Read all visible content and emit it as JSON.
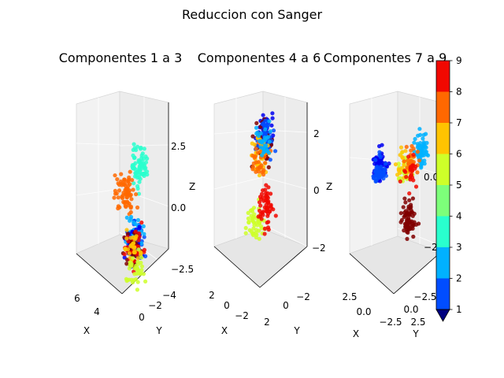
{
  "chart_data": {
    "type": "scatter",
    "title": "Reduccion con Sanger",
    "colorbar": {
      "colormap": "jet",
      "min": 1,
      "max": 9,
      "ticks": [
        "1",
        "2",
        "3",
        "4",
        "5",
        "6",
        "7",
        "8",
        "9"
      ],
      "colors": [
        "#000080",
        "#0000f1",
        "#004dff",
        "#00b1ff",
        "#29ffce",
        "#7dff7a",
        "#ceff29",
        "#ffc400",
        "#ff6800",
        "#f10800",
        "#800000"
      ],
      "extend": "min"
    },
    "subplots": [
      {
        "title": "Componentes 1 a 3",
        "type": "scatter3d",
        "xlabel": "X",
        "ylabel": "Y",
        "zlabel": "Z",
        "xticks": [
          "6",
          "4"
        ],
        "yticks": [
          "0",
          "−2",
          "−4"
        ],
        "zticks": [
          "2.5",
          "0.0",
          "−2.5"
        ],
        "clusters": [
          {
            "class": 4,
            "x": 4.6,
            "y": 0.5,
            "z": 2.3,
            "n": 70
          },
          {
            "class": 7,
            "x": 3.8,
            "y": -2.6,
            "z": 0.1,
            "n": 70
          },
          {
            "class": 2,
            "x": 5.0,
            "y": 0.4,
            "z": -0.7,
            "n": 60
          },
          {
            "class": 3,
            "x": 5.0,
            "y": 0.4,
            "z": -0.3,
            "n": 40
          },
          {
            "class": 1,
            "x": 5.0,
            "y": 0.2,
            "z": -0.8,
            "n": 40
          },
          {
            "class": 9,
            "x": 5.0,
            "y": 0.3,
            "z": -1.0,
            "n": 35
          },
          {
            "class": 8,
            "x": 5.0,
            "y": 0.2,
            "z": -0.9,
            "n": 30
          },
          {
            "class": 6,
            "x": 5.0,
            "y": 0.1,
            "z": -1.0,
            "n": 30
          },
          {
            "class": 5,
            "x": 5.2,
            "y": 0.8,
            "z": -1.7,
            "n": 40
          }
        ]
      },
      {
        "title": "Componentes 4 a 6",
        "type": "scatter3d",
        "xlabel": "X",
        "ylabel": "Y",
        "zlabel": "Z",
        "xticks": [
          "2",
          "0",
          "−2"
        ],
        "yticks": [
          "2",
          "0",
          "−2"
        ],
        "zticks": [
          "2",
          "0",
          "−2"
        ],
        "clusters": [
          {
            "class": 1,
            "x": -1.0,
            "y": -0.5,
            "z": 1.8,
            "n": 45
          },
          {
            "class": 9,
            "x": -1.3,
            "y": -0.8,
            "z": 1.2,
            "n": 45
          },
          {
            "class": 2,
            "x": -2.0,
            "y": -1.5,
            "z": 1.0,
            "n": 50
          },
          {
            "class": 6,
            "x": 0.4,
            "y": 0.4,
            "z": 1.4,
            "n": 40
          },
          {
            "class": 7,
            "x": 0.2,
            "y": 0.0,
            "z": 1.0,
            "n": 30
          },
          {
            "class": 5,
            "x": 1.4,
            "y": 0.8,
            "z": -0.7,
            "n": 50
          },
          {
            "class": 8,
            "x": -0.9,
            "y": -0.2,
            "z": -0.9,
            "n": 55
          },
          {
            "class": 3,
            "x": -1.2,
            "y": -0.8,
            "z": 1.2,
            "n": 30
          }
        ]
      },
      {
        "title": "Componentes 7 a 9",
        "type": "scatter3d",
        "xlabel": "X",
        "ylabel": "Y",
        "zlabel": "",
        "xticks": [
          "2.5",
          "0.0",
          "−2.5"
        ],
        "yticks": [
          "−2.5",
          "0.0",
          "2.5"
        ],
        "zticks": [
          "0.0",
          "−2.5"
        ],
        "clusters": [
          {
            "class": 1,
            "x": 1.0,
            "y": -1.0,
            "z": 0.8,
            "n": 60
          },
          {
            "class": 2,
            "x": 1.0,
            "y": -1.0,
            "z": 0.7,
            "n": 40
          },
          {
            "class": 3,
            "x": -1.5,
            "y": 1.5,
            "z": 1.3,
            "n": 60
          },
          {
            "class": 5,
            "x": -0.4,
            "y": 0.5,
            "z": 0.6,
            "n": 25
          },
          {
            "class": 6,
            "x": -0.4,
            "y": 0.5,
            "z": 0.9,
            "n": 20
          },
          {
            "class": 7,
            "x": -0.9,
            "y": 0.9,
            "z": 1.0,
            "n": 25
          },
          {
            "class": 8,
            "x": -0.9,
            "y": 0.9,
            "z": 0.5,
            "n": 25
          },
          {
            "class": 9,
            "x": -0.8,
            "y": 0.6,
            "z": -1.8,
            "n": 70
          }
        ]
      }
    ]
  }
}
